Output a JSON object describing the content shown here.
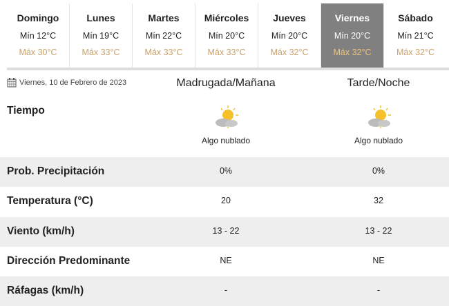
{
  "days": [
    {
      "name": "Domingo",
      "min": "Mín 12°C",
      "max": "Máx 30°C"
    },
    {
      "name": "Lunes",
      "min": "Mín 19°C",
      "max": "Máx 33°C"
    },
    {
      "name": "Martes",
      "min": "Mín 22°C",
      "max": "Máx 33°C"
    },
    {
      "name": "Miércoles",
      "min": "Mín 20°C",
      "max": "Máx 33°C"
    },
    {
      "name": "Jueves",
      "min": "Mín 20°C",
      "max": "Máx 32°C"
    },
    {
      "name": "Viernes",
      "min": "Mín 20°C",
      "max": "Máx 32°C",
      "selected": true
    },
    {
      "name": "Sábado",
      "min": "Mín 21°C",
      "max": "Máx 32°C"
    }
  ],
  "date": "Viernes, 10 de Febrero de 2023",
  "columns": [
    "Madrugada/Mañana",
    "Tarde/Noche"
  ],
  "weather": {
    "label": "Tiempo",
    "icon": "partly-cloudy-icon",
    "values": [
      "Algo nublado",
      "Algo nublado"
    ]
  },
  "rows": [
    {
      "label": "Prob. Precipitación",
      "values": [
        "0%",
        "0%"
      ]
    },
    {
      "label": "Temperatura (°C)",
      "values": [
        "20",
        "32"
      ]
    },
    {
      "label": "Viento (km/h)",
      "values": [
        "13 - 22",
        "13 - 22"
      ]
    },
    {
      "label": "Dirección Predominante",
      "values": [
        "NE",
        "NE"
      ]
    },
    {
      "label": "Ráfagas (km/h)",
      "values": [
        "-",
        "-"
      ]
    }
  ],
  "colors": {
    "selected_bg": "#808080",
    "max_temp": "#c9a06a",
    "row_alt": "#eeeeee"
  }
}
